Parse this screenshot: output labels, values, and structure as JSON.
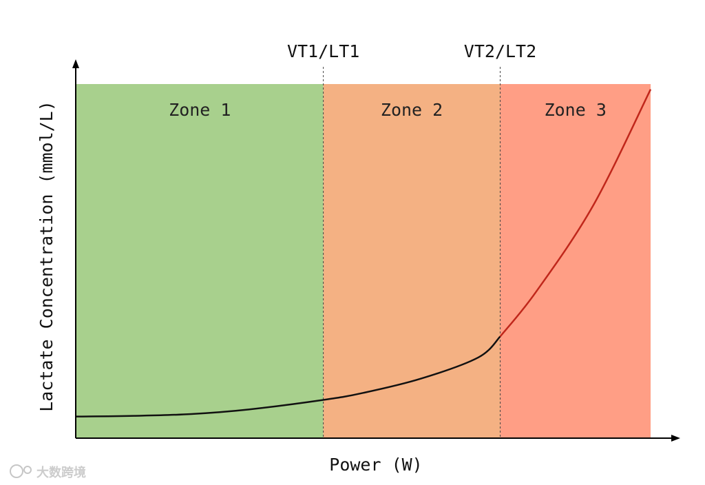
{
  "chart_data": {
    "type": "line",
    "xlabel": "Power (W)",
    "ylabel": "Lactate Concentration (mmol/L)",
    "thresholds": [
      {
        "label": "VT1/LT1",
        "x": 0.43
      },
      {
        "label": "VT2/LT2",
        "x": 0.738
      }
    ],
    "zones": [
      {
        "label": "Zone 1",
        "x_start": 0.0,
        "x_end": 0.43,
        "color": "#a8d08d"
      },
      {
        "label": "Zone 2",
        "x_start": 0.43,
        "x_end": 0.738,
        "color": "#f4b183"
      },
      {
        "label": "Zone 3",
        "x_start": 0.738,
        "x_end": 1.0,
        "color": "#ff9e85"
      }
    ],
    "series": [
      {
        "x": [
          0.0,
          0.1,
          0.2,
          0.3,
          0.43,
          0.5,
          0.6,
          0.7,
          0.738,
          0.8,
          0.9,
          1.0
        ],
        "y": [
          0.061,
          0.063,
          0.068,
          0.081,
          0.108,
          0.128,
          0.168,
          0.228,
          0.287,
          0.412,
          0.657,
          0.985
        ]
      }
    ],
    "xlim": [
      0,
      1
    ],
    "ylim": [
      0,
      1
    ],
    "line_color_low": "#111111",
    "line_color_high": "#c0271b"
  },
  "watermark": {
    "text": "大数跨境"
  }
}
